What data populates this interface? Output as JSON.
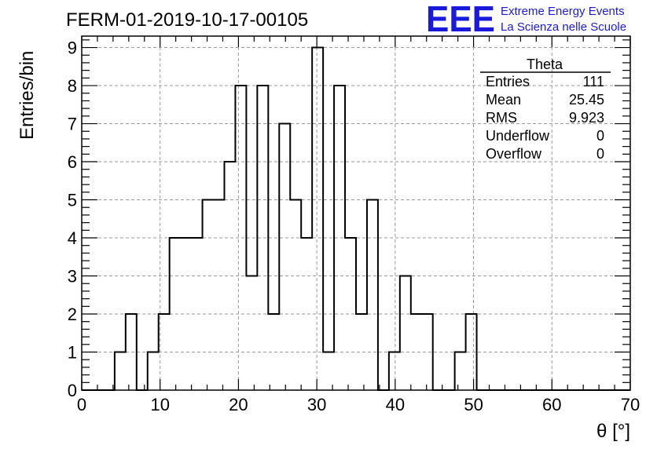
{
  "header": {
    "run_title": "FERM-01-2019-10-17-00105",
    "logo_mark": "EEE",
    "logo_line1": "Extreme Energy Events",
    "logo_line2": "La Scienza nelle Scuole",
    "logo_color": "#1a1adc"
  },
  "chart_data": {
    "type": "bar",
    "style": "step-histogram",
    "xlabel": "θ [°]",
    "ylabel": "Entries/bin",
    "xlim": [
      0,
      70
    ],
    "ylim": [
      0,
      9.3
    ],
    "xticks": [
      0,
      10,
      20,
      30,
      40,
      50,
      60,
      70
    ],
    "yticks": [
      0,
      1,
      2,
      3,
      4,
      5,
      6,
      7,
      8,
      9
    ],
    "grid": true,
    "bin_width": 1.4,
    "bin_edges_start": 0,
    "values": [
      0,
      0,
      0,
      1,
      2,
      0,
      1,
      2,
      4,
      4,
      4,
      5,
      5,
      6,
      8,
      3,
      8,
      2,
      7,
      5,
      4,
      9,
      1,
      8,
      4,
      2,
      5,
      0,
      1,
      3,
      2,
      2,
      0,
      0,
      1,
      2,
      0,
      0,
      0,
      0,
      0,
      0,
      0,
      0,
      0,
      0,
      0,
      0,
      0,
      0
    ],
    "line_color": "#000000"
  },
  "stats_box": {
    "title": "Theta",
    "rows": [
      {
        "label": "Entries",
        "value": "111"
      },
      {
        "label": "Mean",
        "value": "25.45"
      },
      {
        "label": "RMS",
        "value": "9.923"
      },
      {
        "label": "Underflow",
        "value": "0"
      },
      {
        "label": "Overflow",
        "value": "0"
      }
    ]
  }
}
